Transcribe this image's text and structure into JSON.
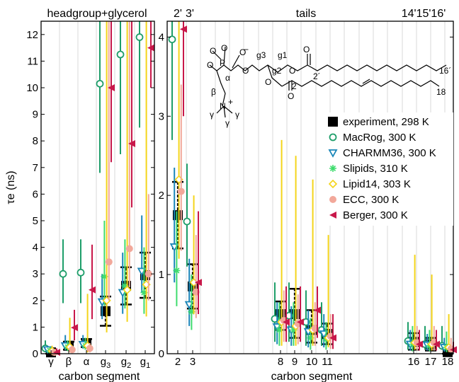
{
  "chart_data": {
    "type": "scatter",
    "ylabel": "τe (ns)",
    "left_panel": {
      "title": "headgroup+glycerol",
      "xlabel": "carbon segment",
      "categories": [
        "γ",
        "β",
        "α",
        "g3",
        "g2",
        "g1"
      ],
      "ylim": [
        0,
        12.5
      ],
      "yticks": [
        0,
        1,
        2,
        3,
        4,
        5,
        6,
        7,
        8,
        9,
        10,
        11,
        12
      ]
    },
    "right_panel": {
      "title": "tails",
      "top_labels": [
        "2'",
        "3'",
        "14'15'16'"
      ],
      "xlabel": "carbon segment",
      "categories": [
        "2",
        "3",
        "8",
        "9",
        "10",
        "11",
        "16",
        "17",
        "18"
      ],
      "ylim": [
        0,
        4.2
      ],
      "yticks": [
        0,
        1,
        2,
        3,
        4
      ]
    },
    "legend": [
      {
        "name": "experiment, 298 K",
        "color": "#000000",
        "marker": "square"
      },
      {
        "name": "MacRog, 300 K",
        "color": "#1e9e6a",
        "marker": "circle"
      },
      {
        "name": "CHARMM36, 300 K",
        "color": "#1a86b8",
        "marker": "tri-down"
      },
      {
        "name": "Slipids, 310 K",
        "color": "#3fdc6e",
        "marker": "star"
      },
      {
        "name": "Lipid14, 303 K",
        "color": "#f4d41a",
        "marker": "diamond"
      },
      {
        "name": "ECC, 300 K",
        "color": "#f2a89a",
        "marker": "disc"
      },
      {
        "name": "Berger, 300 K",
        "color": "#c8184a",
        "marker": "tri-left"
      }
    ],
    "left_series": [
      {
        "name": "experiment, 298 K",
        "points": [
          {
            "cat": "γ",
            "y": 0.05,
            "lo": 0.0,
            "hi": 0.1
          },
          {
            "cat": "β",
            "y": 0.3,
            "lo": 0.15,
            "hi": 0.45
          },
          {
            "cat": "α",
            "y": 0.4,
            "lo": 0.25,
            "hi": 0.55
          },
          {
            "cat": "g3",
            "y": 1.6,
            "lo": 1.05,
            "hi": 2.15
          },
          {
            "cat": "g2",
            "y": 2.55,
            "lo": 1.85,
            "hi": 3.25
          },
          {
            "cat": "g1",
            "y": 2.95,
            "lo": 2.1,
            "hi": 3.8
          }
        ]
      },
      {
        "name": "MacRog, 300 K",
        "points": [
          {
            "cat": "γ",
            "y": 0.2,
            "lo": 0.05,
            "hi": 0.5
          },
          {
            "cat": "β",
            "y": 3.0,
            "lo": 1.9,
            "hi": 4.3
          },
          {
            "cat": "α",
            "y": 3.05,
            "lo": 1.9,
            "hi": 4.3
          },
          {
            "cat": "g3",
            "y": 10.15,
            "lo": 6.8,
            "hi": 12.5
          },
          {
            "cat": "g2",
            "y": 11.25,
            "lo": 7.5,
            "hi": 12.5
          },
          {
            "cat": "g1",
            "y": 11.9,
            "lo": 8.5,
            "hi": 12.5
          }
        ]
      },
      {
        "name": "CHARMM36, 300 K",
        "points": [
          {
            "cat": "γ",
            "y": 0.15,
            "lo": 0.05,
            "hi": 0.3
          },
          {
            "cat": "β",
            "y": 0.3,
            "lo": 0.15,
            "hi": 0.7
          },
          {
            "cat": "α",
            "y": 0.35,
            "lo": 0.2,
            "hi": 0.7
          },
          {
            "cat": "g3",
            "y": 1.95,
            "lo": 1.3,
            "hi": 3.0
          },
          {
            "cat": "g2",
            "y": 2.3,
            "lo": 1.5,
            "hi": 3.8
          },
          {
            "cat": "g1",
            "y": 3.1,
            "lo": 2.3,
            "hi": 5.2
          }
        ]
      },
      {
        "name": "Slipids, 310 K",
        "points": [
          {
            "cat": "γ",
            "y": 0.12,
            "lo": 0.05,
            "hi": 0.25
          },
          {
            "cat": "β",
            "y": 0.25,
            "lo": 0.1,
            "hi": 0.5
          },
          {
            "cat": "α",
            "y": 0.3,
            "lo": 0.15,
            "hi": 0.6
          },
          {
            "cat": "g3",
            "y": 2.9,
            "lo": 1.8,
            "hi": 5.0
          },
          {
            "cat": "g2",
            "y": 2.55,
            "lo": 1.7,
            "hi": 4.3
          },
          {
            "cat": "g1",
            "y": 2.3,
            "lo": 1.5,
            "hi": 4.0
          }
        ]
      },
      {
        "name": "Lipid14, 303 K",
        "points": [
          {
            "cat": "γ",
            "y": 0.1,
            "lo": 0.02,
            "hi": 0.3
          },
          {
            "cat": "β",
            "y": 0.25,
            "lo": 0.05,
            "hi": 1.35
          },
          {
            "cat": "α",
            "y": 0.3,
            "lo": 0.05,
            "hi": 2.25
          },
          {
            "cat": "g3",
            "y": 2.0,
            "lo": 0.8,
            "hi": 12.5
          },
          {
            "cat": "g2",
            "y": 2.4,
            "lo": 1.2,
            "hi": 12.5
          },
          {
            "cat": "g1",
            "y": 2.6,
            "lo": 1.4,
            "hi": 12.5
          }
        ]
      },
      {
        "name": "ECC, 300 K",
        "points": [
          {
            "cat": "γ",
            "y": 0.05,
            "lo": 0.0,
            "hi": 0.15
          },
          {
            "cat": "β",
            "y": 0.15,
            "lo": 0.05,
            "hi": 0.3
          },
          {
            "cat": "α",
            "y": 0.2,
            "lo": 0.05,
            "hi": 0.4
          },
          {
            "cat": "g3",
            "y": 3.45,
            "lo": 2.0,
            "hi": 12.5
          },
          {
            "cat": "g2",
            "y": 3.95,
            "lo": 2.5,
            "hi": 12.5
          },
          {
            "cat": "g1",
            "y": 3.0,
            "lo": 2.0,
            "hi": 6.0
          }
        ]
      },
      {
        "name": "Berger, 300 K",
        "points": [
          {
            "cat": "γ",
            "y": 0.05,
            "lo": 0.0,
            "hi": 0.2
          },
          {
            "cat": "β",
            "y": 0.98,
            "lo": 0.5,
            "hi": 1.65
          },
          {
            "cat": "α",
            "y": 2.4,
            "lo": 1.3,
            "hi": 4.1
          },
          {
            "cat": "g3",
            "y": 10.0,
            "lo": 7.2,
            "hi": 12.5
          },
          {
            "cat": "g2",
            "y": 7.9,
            "lo": 5.5,
            "hi": 12.5
          },
          {
            "cat": "g1",
            "y": 11.5,
            "lo": 10.0,
            "hi": 12.5
          }
        ]
      }
    ],
    "right_series": [
      {
        "name": "experiment, 298 K",
        "points": [
          {
            "cat": "2",
            "y": 1.75,
            "lo": 1.33,
            "hi": 2.17
          },
          {
            "cat": "3",
            "y": 0.85,
            "lo": 0.57,
            "hi": 1.13
          },
          {
            "cat": "8",
            "y": 0.5,
            "lo": 0.3,
            "hi": 0.66
          },
          {
            "cat": "9",
            "y": 0.5,
            "lo": 0.2,
            "hi": 0.82
          },
          {
            "cat": "10",
            "y": 0.3,
            "lo": 0.14,
            "hi": 0.55
          },
          {
            "cat": "11",
            "y": 0.25,
            "lo": 0.12,
            "hi": 0.38
          },
          {
            "cat": "16",
            "y": 0.15,
            "lo": 0.05,
            "hi": 0.26
          },
          {
            "cat": "17",
            "y": 0.12,
            "lo": 0.04,
            "hi": 0.2
          },
          {
            "cat": "18",
            "y": 0.02,
            "lo": 0.0,
            "hi": 0.06
          }
        ]
      },
      {
        "name": "MacRog, 300 K",
        "points": [
          {
            "cat": "2",
            "y": 3.97,
            "lo": 2.7,
            "hi": 4.2
          },
          {
            "cat": "3",
            "y": 1.67,
            "lo": 1.1,
            "hi": 2.4
          },
          {
            "cat": "8",
            "y": 0.44,
            "lo": 0.15,
            "hi": 0.9
          },
          {
            "cat": "9",
            "y": 0.48,
            "lo": 0.15,
            "hi": 0.9
          },
          {
            "cat": "10",
            "y": 0.4,
            "lo": 0.1,
            "hi": 0.8
          },
          {
            "cat": "11",
            "y": 0.3,
            "lo": 0.1,
            "hi": 0.65
          },
          {
            "cat": "16",
            "y": 0.16,
            "lo": 0.05,
            "hi": 0.4
          },
          {
            "cat": "17",
            "y": 0.12,
            "lo": 0.05,
            "hi": 0.35
          },
          {
            "cat": "18",
            "y": 0.1,
            "lo": 0.05,
            "hi": 0.35
          }
        ]
      },
      {
        "name": "CHARMM36, 300 K",
        "points": [
          {
            "cat": "2",
            "y": 1.35,
            "lo": 0.9,
            "hi": 2.35
          },
          {
            "cat": "3",
            "y": 0.62,
            "lo": 0.35,
            "hi": 1.2
          },
          {
            "cat": "8",
            "y": 0.34,
            "lo": 0.12,
            "hi": 0.65
          },
          {
            "cat": "9",
            "y": 0.3,
            "lo": 0.1,
            "hi": 0.6
          },
          {
            "cat": "10",
            "y": 0.28,
            "lo": 0.08,
            "hi": 0.55
          },
          {
            "cat": "11",
            "y": 0.25,
            "lo": 0.08,
            "hi": 0.5
          },
          {
            "cat": "16",
            "y": 0.12,
            "lo": 0.04,
            "hi": 0.3
          },
          {
            "cat": "17",
            "y": 0.11,
            "lo": 0.04,
            "hi": 0.25
          },
          {
            "cat": "18",
            "y": 0.08,
            "lo": 0.03,
            "hi": 0.2
          }
        ]
      },
      {
        "name": "Slipids, 310 K",
        "points": [
          {
            "cat": "2",
            "y": 1.05,
            "lo": 0.6,
            "hi": 1.8
          },
          {
            "cat": "3",
            "y": 0.53,
            "lo": 0.3,
            "hi": 1.0
          },
          {
            "cat": "8",
            "y": 0.3,
            "lo": 0.1,
            "hi": 0.65
          },
          {
            "cat": "9",
            "y": 0.3,
            "lo": 0.1,
            "hi": 0.65
          },
          {
            "cat": "10",
            "y": 0.2,
            "lo": 0.05,
            "hi": 0.45
          },
          {
            "cat": "11",
            "y": 0.18,
            "lo": 0.05,
            "hi": 0.4
          },
          {
            "cat": "16",
            "y": 0.12,
            "lo": 0.03,
            "hi": 0.35
          },
          {
            "cat": "17",
            "y": 0.1,
            "lo": 0.03,
            "hi": 0.3
          },
          {
            "cat": "18",
            "y": 0.08,
            "lo": 0.02,
            "hi": 0.28
          }
        ]
      },
      {
        "name": "Lipid14, 303 K",
        "points": [
          {
            "cat": "2",
            "y": 2.2,
            "lo": 1.2,
            "hi": 4.2
          },
          {
            "cat": "3",
            "y": 0.9,
            "lo": 0.5,
            "hi": 2.0
          },
          {
            "cat": "8",
            "y": 0.4,
            "lo": 0.1,
            "hi": 2.7
          },
          {
            "cat": "9",
            "y": 0.35,
            "lo": 0.1,
            "hi": 2.5
          },
          {
            "cat": "10",
            "y": 0.3,
            "lo": 0.1,
            "hi": 2.2
          },
          {
            "cat": "11",
            "y": 0.2,
            "lo": 0.08,
            "hi": 1.5
          },
          {
            "cat": "16",
            "y": 0.14,
            "lo": 0.05,
            "hi": 1.25
          },
          {
            "cat": "17",
            "y": 0.12,
            "lo": 0.04,
            "hi": 1.0
          },
          {
            "cat": "18",
            "y": 0.08,
            "lo": 0.02,
            "hi": 0.5
          }
        ]
      },
      {
        "name": "ECC, 300 K",
        "points": [
          {
            "cat": "2",
            "y": 2.05,
            "lo": 1.3,
            "hi": 3.4
          },
          {
            "cat": "3",
            "y": 0.78,
            "lo": 0.45,
            "hi": 1.5
          },
          {
            "cat": "8",
            "y": 0.42,
            "lo": 0.15,
            "hi": 0.8
          },
          {
            "cat": "9",
            "y": 0.38,
            "lo": 0.12,
            "hi": 0.75
          },
          {
            "cat": "10",
            "y": 0.32,
            "lo": 0.1,
            "hi": 0.65
          },
          {
            "cat": "11",
            "y": 0.22,
            "lo": 0.06,
            "hi": 0.5
          },
          {
            "cat": "16",
            "y": 0.14,
            "lo": 0.04,
            "hi": 0.35
          },
          {
            "cat": "17",
            "y": 0.14,
            "lo": 0.04,
            "hi": 0.35
          },
          {
            "cat": "18",
            "y": 0.06,
            "lo": 0.02,
            "hi": 0.2
          }
        ]
      },
      {
        "name": "Berger, 300 K",
        "points": [
          {
            "cat": "2",
            "y": 4.1,
            "lo": 3.0,
            "hi": 4.2
          },
          {
            "cat": "3",
            "y": 0.9,
            "lo": 0.5,
            "hi": 1.8
          },
          {
            "cat": "8",
            "y": 0.4,
            "lo": 0.15,
            "hi": 0.85
          },
          {
            "cat": "9",
            "y": 0.4,
            "lo": 0.15,
            "hi": 0.85
          },
          {
            "cat": "10",
            "y": 0.55,
            "lo": 0.2,
            "hi": 0.85
          },
          {
            "cat": "11",
            "y": 0.2,
            "lo": 0.06,
            "hi": 0.5
          },
          {
            "cat": "16",
            "y": 0.12,
            "lo": 0.04,
            "hi": 0.3
          },
          {
            "cat": "17",
            "y": 0.12,
            "lo": 0.04,
            "hi": 0.3
          },
          {
            "cat": "18",
            "y": 0.05,
            "lo": 0.02,
            "hi": 0.15
          }
        ]
      }
    ]
  },
  "molecule": {
    "labels": [
      "O",
      "P",
      "O",
      "O",
      "O",
      "−",
      "O",
      "g3",
      "g1",
      "g2",
      "O",
      "O",
      "2´",
      "16´",
      "α",
      "β",
      "O",
      "O",
      "2",
      "18",
      "N",
      "+",
      "γ",
      "γ",
      "γ"
    ]
  }
}
